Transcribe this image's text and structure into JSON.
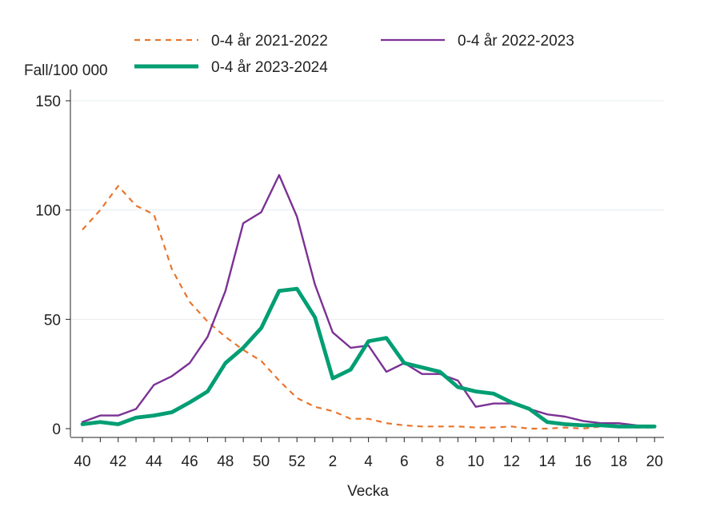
{
  "chart_data": {
    "type": "line",
    "title": "",
    "xlabel": "Vecka",
    "ylabel": "Fall/100 000",
    "ylim": [
      0,
      150
    ],
    "yticks": [
      0,
      50,
      100,
      150
    ],
    "x_weeks": [
      40,
      41,
      42,
      43,
      44,
      45,
      46,
      47,
      48,
      49,
      50,
      51,
      52,
      1,
      2,
      3,
      4,
      5,
      6,
      7,
      8,
      9,
      10,
      11,
      12,
      13,
      14,
      15,
      16,
      17,
      18,
      19,
      20
    ],
    "x_tick_labels": [
      "40",
      "42",
      "44",
      "46",
      "48",
      "50",
      "52",
      "2",
      "4",
      "6",
      "8",
      "10",
      "12",
      "14",
      "16",
      "18",
      "20"
    ],
    "grid": "horizontal",
    "legend_position": "top",
    "series": [
      {
        "name": "0-4 år 2021-2022",
        "color": "#e8762d",
        "style": "dashed",
        "values": [
          91,
          100,
          111,
          102,
          98,
          73,
          58,
          49,
          42,
          36,
          31,
          22,
          14,
          10,
          8,
          4.5,
          4.5,
          2.5,
          1.5,
          1,
          1,
          1,
          0.5,
          0.5,
          1,
          0,
          0,
          0.5,
          0,
          1,
          1,
          0.5,
          0.5
        ]
      },
      {
        "name": "0-4 år 2022-2023",
        "color": "#7b3294",
        "style": "solid",
        "values": [
          3,
          6,
          6,
          9,
          20,
          24,
          30,
          42,
          63,
          94,
          99,
          116,
          97,
          66,
          44,
          37,
          38,
          26,
          30,
          25,
          25,
          22,
          10,
          11.5,
          11.5,
          9,
          6.5,
          5.5,
          3.5,
          2.5,
          2.5,
          1.5,
          1
        ]
      },
      {
        "name": "0-4 år 2023-2024",
        "color": "#009e73",
        "style": "thick",
        "values": [
          2,
          3,
          2,
          5,
          6,
          7.5,
          12,
          17,
          30,
          37,
          46,
          63,
          64,
          51,
          23,
          27,
          40,
          41.5,
          30,
          28,
          26,
          19,
          17,
          16,
          12,
          9,
          3,
          2,
          1.5,
          1.5,
          1,
          1,
          1
        ]
      }
    ]
  }
}
